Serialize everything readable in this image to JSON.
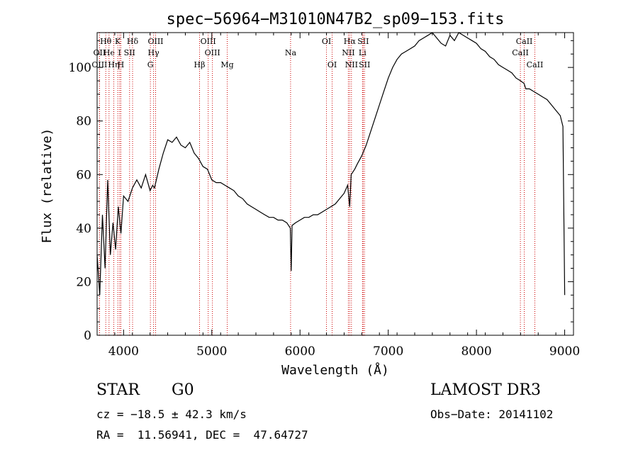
{
  "chart_data": {
    "type": "line",
    "title": "spec−56964−M31010N47B2_sp09−153.fits",
    "xlabel": "Wavelength (Å)",
    "ylabel": "Flux (relative)",
    "xlim": [
      3700,
      9100
    ],
    "ylim": [
      0,
      113
    ],
    "x_ticks": [
      4000,
      5000,
      6000,
      7000,
      8000,
      9000
    ],
    "y_ticks": [
      0,
      20,
      40,
      60,
      80,
      100
    ],
    "grid": false,
    "series": [
      {
        "name": "spectrum",
        "x": [
          3700,
          3730,
          3760,
          3790,
          3820,
          3850,
          3880,
          3910,
          3940,
          3970,
          4000,
          4050,
          4100,
          4150,
          4200,
          4250,
          4300,
          4330,
          4350,
          4400,
          4450,
          4500,
          4550,
          4600,
          4650,
          4700,
          4750,
          4800,
          4850,
          4900,
          4950,
          5000,
          5050,
          5100,
          5150,
          5200,
          5250,
          5300,
          5350,
          5400,
          5450,
          5500,
          5550,
          5600,
          5650,
          5700,
          5750,
          5800,
          5850,
          5890,
          5900,
          5910,
          5950,
          6000,
          6050,
          6100,
          6150,
          6200,
          6250,
          6300,
          6350,
          6400,
          6450,
          6500,
          6540,
          6563,
          6580,
          6620,
          6650,
          6700,
          6750,
          6800,
          6850,
          6900,
          6950,
          7000,
          7050,
          7100,
          7150,
          7200,
          7250,
          7300,
          7350,
          7400,
          7450,
          7500,
          7550,
          7600,
          7650,
          7700,
          7750,
          7800,
          7850,
          7900,
          7950,
          8000,
          8050,
          8100,
          8150,
          8200,
          8250,
          8300,
          8350,
          8400,
          8450,
          8500,
          8540,
          8560,
          8600,
          8650,
          8700,
          8750,
          8800,
          8850,
          8900,
          8950,
          8980,
          9000
        ],
        "values": [
          30,
          15,
          45,
          25,
          58,
          30,
          42,
          32,
          48,
          38,
          52,
          50,
          55,
          58,
          55,
          60,
          54,
          56,
          55,
          62,
          68,
          73,
          72,
          74,
          71,
          70,
          72,
          68,
          66,
          63,
          62,
          58,
          57,
          57,
          56,
          55,
          54,
          52,
          51,
          49,
          48,
          47,
          46,
          45,
          44,
          44,
          43,
          43,
          42,
          40,
          24,
          41,
          42,
          43,
          44,
          44,
          45,
          45,
          46,
          47,
          48,
          49,
          51,
          53,
          56,
          48,
          60,
          62,
          64,
          67,
          71,
          76,
          81,
          86,
          91,
          96,
          100,
          103,
          105,
          106,
          107,
          108,
          110,
          111,
          112,
          113,
          111,
          109,
          108,
          112,
          110,
          113,
          112,
          111,
          110,
          109,
          107,
          106,
          104,
          103,
          101,
          100,
          99,
          98,
          96,
          95,
          94,
          92,
          92,
          91,
          90,
          89,
          88,
          86,
          84,
          82,
          78,
          15
        ]
      }
    ],
    "lines": [
      {
        "label": "Hθ",
        "x": 3798,
        "row": 1
      },
      {
        "label": "OII",
        "x": 3727,
        "row": 2
      },
      {
        "label": "OIII",
        "x": 3727,
        "row": 3
      },
      {
        "label": "He",
        "x": 3835,
        "row": 2
      },
      {
        "label": "Hη",
        "x": 3889,
        "row": 3
      },
      {
        "label": "K",
        "x": 3934,
        "row": 1
      },
      {
        "label": "H",
        "x": 3969,
        "row": 3
      },
      {
        "label": "I",
        "x": 3955,
        "row": 2
      },
      {
        "label": "SII",
        "x": 4068,
        "row": 2
      },
      {
        "label": "Hδ",
        "x": 4102,
        "row": 1
      },
      {
        "label": "OIII",
        "x": 4363,
        "row": 1
      },
      {
        "label": "Hγ",
        "x": 4340,
        "row": 2
      },
      {
        "label": "G",
        "x": 4304,
        "row": 3
      },
      {
        "label": "Hβ",
        "x": 4861,
        "row": 3
      },
      {
        "label": "OIII",
        "x": 4959,
        "row": 1
      },
      {
        "label": "OIII",
        "x": 5007,
        "row": 2
      },
      {
        "label": "Mg",
        "x": 5175,
        "row": 3
      },
      {
        "label": "Na",
        "x": 5893,
        "row": 2
      },
      {
        "label": "OI",
        "x": 6300,
        "row": 1
      },
      {
        "label": "OI",
        "x": 6364,
        "row": 3
      },
      {
        "label": "Hα",
        "x": 6563,
        "row": 1
      },
      {
        "label": "NII",
        "x": 6548,
        "row": 2
      },
      {
        "label": "NII",
        "x": 6583,
        "row": 3
      },
      {
        "label": "SII",
        "x": 6716,
        "row": 1
      },
      {
        "label": "Li",
        "x": 6708,
        "row": 2
      },
      {
        "label": "SII",
        "x": 6731,
        "row": 3
      },
      {
        "label": "CaII",
        "x": 8542,
        "row": 1
      },
      {
        "label": "CaII",
        "x": 8498,
        "row": 2
      },
      {
        "label": "CaII",
        "x": 8662,
        "row": 3
      }
    ]
  },
  "info": {
    "class": "STAR",
    "subclass": "G0",
    "survey": "LAMOST DR3",
    "redshift": "cz = −18.5 ± 42.3 km/s",
    "obs_date": "Obs−Date: 20141102",
    "coords": "RA =  11.56941, DEC =  47.64727"
  },
  "colors": {
    "line_marker": "#cc0000",
    "spectrum": "#000000",
    "axis": "#000000"
  }
}
